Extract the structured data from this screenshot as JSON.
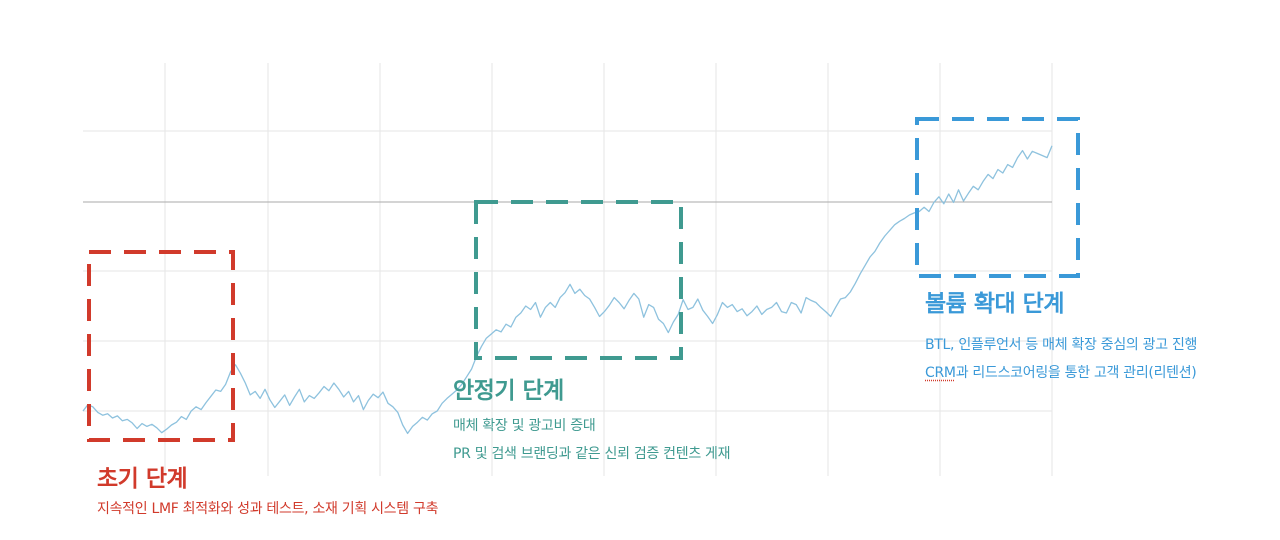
{
  "colors": {
    "line": "#8ec2de",
    "grid": "#e6e6e6",
    "midline": "#a9a9a9",
    "early": "#d13a2b",
    "stable": "#3f9a90",
    "expand": "#3a99d8"
  },
  "chart_data": {
    "type": "line",
    "title": "",
    "xlabel": "",
    "ylabel": "",
    "grid": true,
    "series": [
      {
        "values": [
          0.0,
          0.09,
          0.06,
          -0.02,
          -0.06,
          -0.04,
          -0.1,
          -0.07,
          -0.14,
          -0.12,
          -0.17,
          -0.25,
          -0.18,
          -0.22,
          -0.19,
          -0.24,
          -0.31,
          -0.26,
          -0.2,
          -0.16,
          -0.08,
          -0.12,
          0.0,
          0.06,
          0.02,
          0.12,
          0.21,
          0.3,
          0.28,
          0.38,
          0.56,
          0.66,
          0.54,
          0.4,
          0.23,
          0.28,
          0.18,
          0.31,
          0.16,
          0.05,
          0.14,
          0.23,
          0.08,
          0.2,
          0.31,
          0.13,
          0.22,
          0.18,
          0.26,
          0.35,
          0.29,
          0.4,
          0.31,
          0.2,
          0.28,
          0.13,
          0.22,
          0.02,
          0.15,
          0.24,
          0.19,
          0.27,
          0.11,
          0.06,
          -0.02,
          -0.2,
          -0.32,
          -0.22,
          -0.16,
          -0.09,
          -0.13,
          -0.04,
          0.0,
          0.11,
          0.18,
          0.24,
          0.3,
          0.38,
          0.49,
          0.6,
          0.78,
          0.92,
          1.04,
          1.1,
          1.16,
          1.13,
          1.24,
          1.2,
          1.34,
          1.4,
          1.5,
          1.45,
          1.55,
          1.34,
          1.48,
          1.55,
          1.48,
          1.62,
          1.69,
          1.81,
          1.68,
          1.74,
          1.65,
          1.6,
          1.48,
          1.35,
          1.42,
          1.51,
          1.62,
          1.55,
          1.46,
          1.58,
          1.68,
          1.6,
          1.34,
          1.52,
          1.48,
          1.31,
          1.25,
          1.12,
          1.27,
          1.38,
          1.59,
          1.45,
          1.48,
          1.6,
          1.44,
          1.35,
          1.25,
          1.38,
          1.55,
          1.48,
          1.52,
          1.42,
          1.46,
          1.36,
          1.42,
          1.5,
          1.38,
          1.45,
          1.48,
          1.55,
          1.42,
          1.4,
          1.55,
          1.52,
          1.4,
          1.62,
          1.58,
          1.55,
          1.48,
          1.42,
          1.35,
          1.48,
          1.6,
          1.62,
          1.7,
          1.82,
          1.96,
          2.08,
          2.2,
          2.28,
          2.4,
          2.5,
          2.58,
          2.66,
          2.71,
          2.75,
          2.8,
          2.83,
          2.85,
          2.91,
          2.85,
          2.98,
          3.06,
          2.96,
          3.1,
          2.98,
          3.16,
          3.0,
          3.11,
          3.21,
          3.16,
          3.28,
          3.38,
          3.32,
          3.45,
          3.4,
          3.52,
          3.48,
          3.62,
          3.72,
          3.6,
          3.71,
          3.68,
          3.65,
          3.62,
          3.79
        ]
      }
    ]
  },
  "phases": [
    {
      "title": "초기 단계",
      "lines": [
        "지속적인 LMF 최적화와 성과 테스트, 소재 기획 시스템 구축"
      ]
    },
    {
      "title": "안정기 단계",
      "lines": [
        "매체 확장 및 광고비 증대",
        "PR 및 검색 브랜딩과 같은 신뢰 검증 컨텐츠 게재"
      ]
    },
    {
      "title": "볼륨 확대 단계",
      "lines": [
        "BTL, 인플루언서 등 매체 확장 중심의 광고 진행"
      ],
      "line2_a": "CRM",
      "line2_b": "과 리드스코어링을 통한 고객 관리(리텐션)"
    }
  ]
}
